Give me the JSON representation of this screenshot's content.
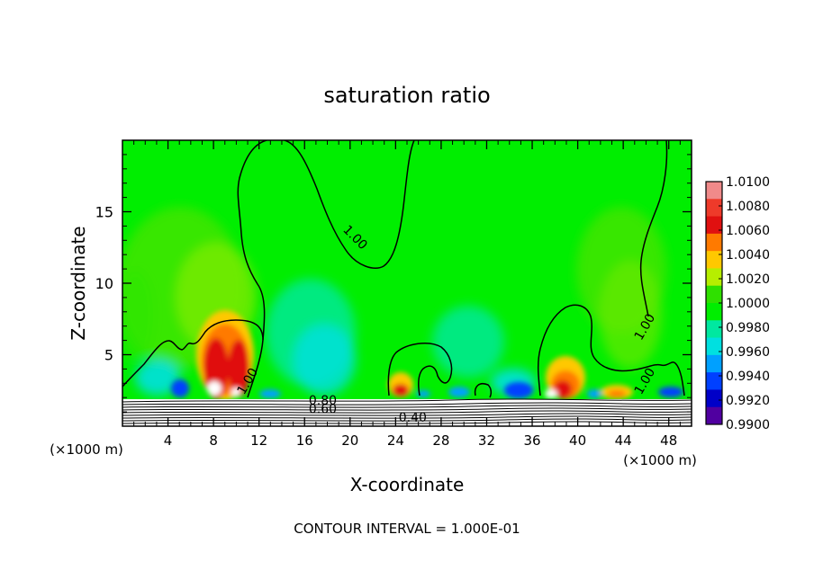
{
  "chart_data": {
    "type": "heatmap",
    "title": "saturation ratio",
    "xlabel": "X-coordinate",
    "ylabel": "Z-coordinate",
    "x_unit_left": "(×1000 m)",
    "x_unit_right": "(×1000 m)",
    "xlim": [
      0,
      50
    ],
    "ylim": [
      0,
      20
    ],
    "xticks": [
      4,
      8,
      12,
      16,
      20,
      24,
      28,
      32,
      36,
      40,
      44,
      48
    ],
    "yticks": [
      5,
      10,
      15
    ],
    "colorbar": {
      "levels": [
        "1.0100",
        "1.0080",
        "1.0060",
        "1.0040",
        "1.0020",
        "1.0000",
        "0.9980",
        "0.9960",
        "0.9940",
        "0.9920",
        "0.9900"
      ],
      "colors": [
        "#f08a8a",
        "#ee3a2a",
        "#e01010",
        "#ff7a00",
        "#ffc800",
        "#b6ee00",
        "#2fe000",
        "#00ee00",
        "#00e8a0",
        "#00e0e0",
        "#00a0ff",
        "#0040ff",
        "#0000c8",
        "#5000a0"
      ]
    },
    "contour_labels": [
      {
        "text": "1.00",
        "x": 20.2,
        "z": 13.0
      },
      {
        "text": "1.00",
        "x": 11.3,
        "z": 3.0
      },
      {
        "text": "1.00",
        "x": 46.2,
        "z": 6.8
      },
      {
        "text": "1.00",
        "x": 46.2,
        "z": 3.0
      },
      {
        "text": "0.80",
        "x": 17.6,
        "z": 1.5
      },
      {
        "text": "0.60",
        "x": 17.6,
        "z": 0.9
      },
      {
        "text": "0.40",
        "x": 25.5,
        "z": 0.3
      }
    ],
    "footnote": "CONTOUR INTERVAL = 1.000E-01"
  }
}
